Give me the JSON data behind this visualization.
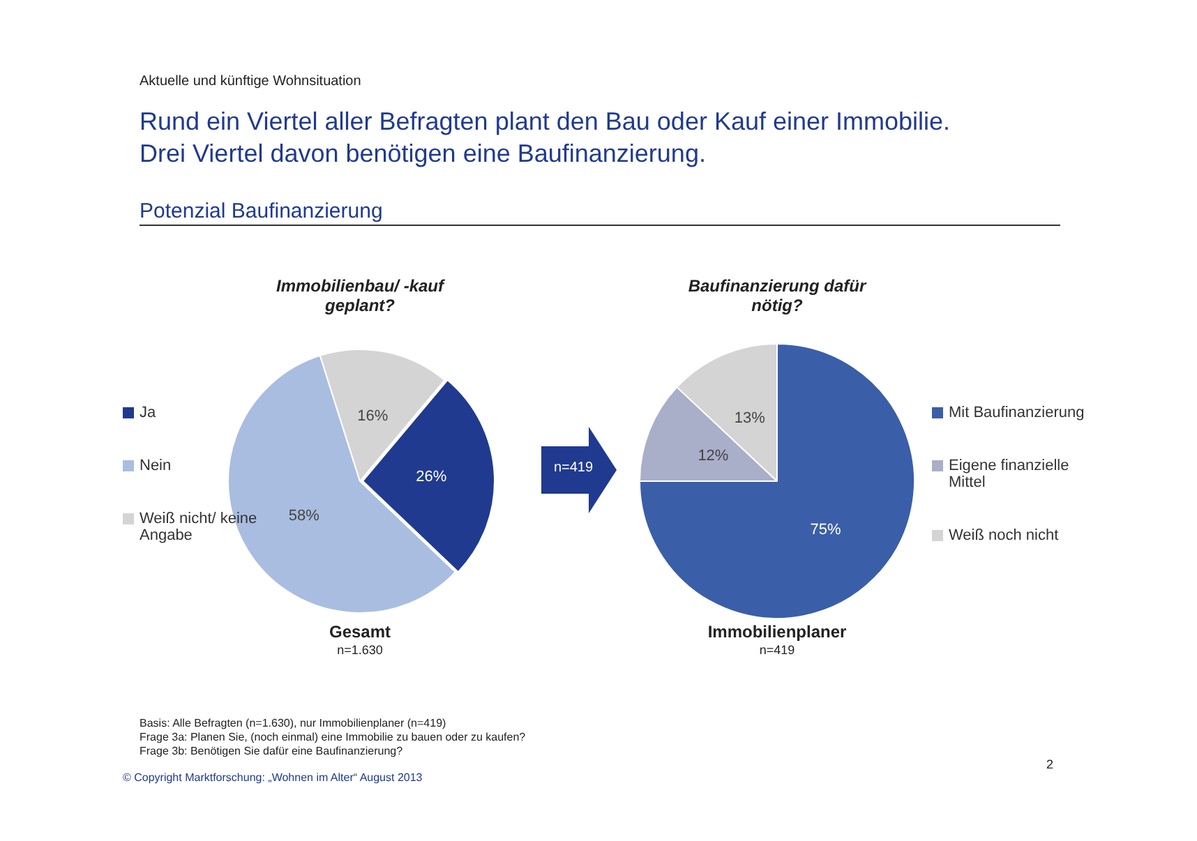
{
  "chart_data": [
    {
      "type": "other",
      "title": "Rund ein Viertel aller Befragten plant den Bau oder Kauf einer Immobilie. Drei Viertel davon benötigen eine Baufinanzierung.",
      "subtitle": "Potenzial Baufinanzierung",
      "annotations": [
        "Aktuelle und künftige Wohnsituation",
        "Basis: Alle Befragten (n=1.630), nur Immobilienplaner (n=419)",
        "Frage 3a: Planen Sie, (noch einmal) eine Immobilie zu bauen oder zu kaufen?",
        "Frage 3b: Benötigen Sie dafür eine Baufinanzierung?",
        "© Copyright Marktforschung: „Wohnen im Alter“ August 2013",
        "2"
      ]
    },
    {
      "type": "pie",
      "title": "Immobilienbau/ -kauf geplant?",
      "xlabel": "Gesamt",
      "annotations": [
        "n=1.630"
      ],
      "categories": [
        "Ja",
        "Nein",
        "Weiß nicht/ keine Angabe"
      ],
      "values": [
        26,
        58,
        16
      ],
      "colors": [
        "#1f3a8f",
        "#a9bde0",
        "#d4d4d4"
      ],
      "value_labels": [
        "26%",
        "58%",
        "16%"
      ],
      "legend": "left"
    },
    {
      "type": "pie",
      "title": "Baufinanzierung dafür nötig?",
      "xlabel": "Immobilienplaner",
      "annotations": [
        "n=419",
        "n=419"
      ],
      "categories": [
        "Mit Baufinanzierung",
        "Eigene finanzielle Mittel",
        "Weiß noch nicht"
      ],
      "values": [
        75,
        12,
        13
      ],
      "colors": [
        "#3a5ea8",
        "#a9aec9",
        "#d4d4d4"
      ],
      "value_labels": [
        "75%",
        "12%",
        "13%"
      ],
      "legend": "right"
    }
  ]
}
